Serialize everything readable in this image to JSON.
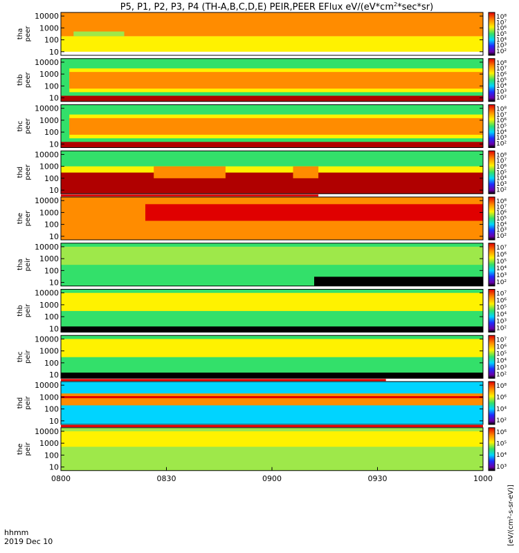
{
  "title": "P5, P1, P2, P3, P4 (TH-A,B,C,D,E) PEIR,PEER EFlux eV/(eV*cm",
  "title_sup": "2",
  "title_end": "*sec*sr)",
  "time_axis": {
    "range": [
      "0800",
      "1000"
    ],
    "ticks": [
      "0800",
      "0830",
      "0900",
      "0930",
      "1000"
    ],
    "label_line1": "hhmm",
    "label_line2": "2019 Dec 10"
  },
  "colorbar_label": "[eV/(cm²-s-sr-eV)]",
  "colors": {
    "black": "#000000",
    "purple": "#6a00a8",
    "blue": "#1f2bff",
    "cyan": "#00d4ff",
    "green": "#33e06a",
    "lightgreen": "#9ee84a",
    "yellow": "#fff200",
    "orange": "#ff8c00",
    "red": "#e00000",
    "darkred": "#b00000"
  },
  "chart_data": {
    "type": "heatmap",
    "title": "P5, P1, P2, P3, P4 (TH-A,B,C,D,E) PEIR,PEER EFlux eV/(eV*cm2*sec*sr)",
    "x": "time (hhmm), 2019 Dec 10, 0800-1000",
    "yscale": "log",
    "ylim": [
      5,
      20000
    ],
    "y_ticks": [
      "10",
      "100",
      "1000",
      "10000"
    ],
    "panels": [
      {
        "label": [
          "tha",
          "peer"
        ],
        "cbar_ticks": [
          "10⁸",
          "10⁷",
          "10⁶",
          "10⁵",
          "10⁴",
          "10³",
          "10²"
        ],
        "bands": [
          {
            "x": [
              0,
              1
            ],
            "y": [
              10,
              200
            ],
            "c": "yellow"
          },
          {
            "x": [
              0,
              1
            ],
            "y": [
              200,
              20000
            ],
            "c": "orange"
          },
          {
            "x": [
              0.03,
              0.15
            ],
            "y": [
              200,
              500
            ],
            "c": "lightgreen"
          },
          {
            "x": [
              0.12,
              0.15
            ],
            "y": [
              1500,
              5000
            ],
            "c": "orange"
          }
        ],
        "status_bar": null
      },
      {
        "label": [
          "thb",
          "peer"
        ],
        "cbar_ticks": [
          "10⁸",
          "10⁷",
          "10⁶",
          "10⁵",
          "10⁴",
          "10³",
          "10²"
        ],
        "bands": [
          {
            "x": [
              0,
              1
            ],
            "y": [
              5,
              20000
            ],
            "c": "green"
          },
          {
            "x": [
              0.02,
              1
            ],
            "y": [
              30,
              3000
            ],
            "c": "yellow"
          },
          {
            "x": [
              0.02,
              1
            ],
            "y": [
              60,
              1500
            ],
            "c": "orange"
          },
          {
            "x": [
              0,
              1
            ],
            "y": [
              5,
              15
            ],
            "c": "darkred"
          }
        ],
        "status_bar": null
      },
      {
        "label": [
          "thc",
          "peer"
        ],
        "cbar_ticks": [
          "10⁸",
          "10⁷",
          "10⁶",
          "10⁵",
          "10⁴",
          "10³",
          "10²"
        ],
        "bands": [
          {
            "x": [
              0,
              1
            ],
            "y": [
              5,
              20000
            ],
            "c": "green"
          },
          {
            "x": [
              0.02,
              1
            ],
            "y": [
              30,
              3000
            ],
            "c": "yellow"
          },
          {
            "x": [
              0.02,
              1
            ],
            "y": [
              60,
              1500
            ],
            "c": "orange"
          },
          {
            "x": [
              0,
              1
            ],
            "y": [
              5,
              15
            ],
            "c": "darkred"
          }
        ],
        "status_bar": null
      },
      {
        "label": [
          "thd",
          "peer"
        ],
        "cbar_ticks": [
          "10⁸",
          "10⁷",
          "10⁶",
          "10⁵",
          "10⁴",
          "10³",
          "10²"
        ],
        "bands": [
          {
            "x": [
              0,
              1
            ],
            "y": [
              200,
              20000
            ],
            "c": "green"
          },
          {
            "x": [
              0,
              1
            ],
            "y": [
              100,
              1000
            ],
            "c": "yellow"
          },
          {
            "x": [
              0,
              1
            ],
            "y": [
              5,
              300
            ],
            "c": "darkred"
          },
          {
            "x": [
              0.22,
              0.39
            ],
            "y": [
              100,
              1000
            ],
            "c": "orange"
          },
          {
            "x": [
              0.55,
              0.61
            ],
            "y": [
              100,
              1000
            ],
            "c": "orange"
          }
        ],
        "status_bar": {
          "fraction": 0.61,
          "color": "red"
        }
      },
      {
        "label": [
          "the",
          "peer"
        ],
        "cbar_ticks": [
          "10⁸",
          "10⁷",
          "10⁶",
          "10⁵",
          "10⁴",
          "10³",
          "10²"
        ],
        "bands": [
          {
            "x": [
              0,
              1
            ],
            "y": [
              5,
              20000
            ],
            "c": "orange"
          },
          {
            "x": [
              0.2,
              1
            ],
            "y": [
              200,
              5000
            ],
            "c": "red"
          }
        ],
        "status_bar": null
      },
      {
        "label": [
          "tha",
          "peir"
        ],
        "cbar_ticks": [
          "10⁷",
          "10⁶",
          "10⁵",
          "10⁴",
          "10³",
          "10²"
        ],
        "bands": [
          {
            "x": [
              0,
              1
            ],
            "y": [
              5,
              20000
            ],
            "c": "green"
          },
          {
            "x": [
              0,
              1
            ],
            "y": [
              300,
              10000
            ],
            "c": "lightgreen"
          },
          {
            "x": [
              0.6,
              1
            ],
            "y": [
              5,
              30
            ],
            "c": "black"
          }
        ],
        "status_bar": {
          "fraction": 0.85,
          "color": "red",
          "start": 0.85
        }
      },
      {
        "label": [
          "thb",
          "peir"
        ],
        "cbar_ticks": [
          "10⁷",
          "10⁶",
          "10⁵",
          "10⁴",
          "10³",
          "10²"
        ],
        "bands": [
          {
            "x": [
              0,
              1
            ],
            "y": [
              5,
              20000
            ],
            "c": "green"
          },
          {
            "x": [
              0,
              1
            ],
            "y": [
              300,
              10000
            ],
            "c": "yellow"
          },
          {
            "x": [
              0,
              1
            ],
            "y": [
              5,
              15
            ],
            "c": "black"
          }
        ],
        "status_bar": {
          "fraction": 0.85,
          "color": "red",
          "start": 0.85
        }
      },
      {
        "label": [
          "thc",
          "peir"
        ],
        "cbar_ticks": [
          "10⁷",
          "10⁶",
          "10⁵",
          "10⁴",
          "10³",
          "10²"
        ],
        "bands": [
          {
            "x": [
              0,
              1
            ],
            "y": [
              5,
              20000
            ],
            "c": "green"
          },
          {
            "x": [
              0,
              1
            ],
            "y": [
              300,
              10000
            ],
            "c": "yellow"
          },
          {
            "x": [
              0,
              1
            ],
            "y": [
              5,
              15
            ],
            "c": "black"
          }
        ],
        "status_bar": {
          "fraction": 0.77,
          "color": "red"
        }
      },
      {
        "label": [
          "thd",
          "peir"
        ],
        "cbar_ticks": [
          "10⁸",
          "10⁶",
          "10⁴",
          "10²"
        ],
        "bands": [
          {
            "x": [
              0,
              1
            ],
            "y": [
              5,
              20000
            ],
            "c": "cyan"
          },
          {
            "x": [
              0,
              1
            ],
            "y": [
              200,
              2000
            ],
            "c": "orange"
          },
          {
            "x": [
              0,
              1
            ],
            "y": [
              800,
              1200
            ],
            "c": "red"
          }
        ],
        "status_bar": {
          "fraction": 1.0,
          "color": "red"
        }
      },
      {
        "label": [
          "the",
          "peir"
        ],
        "cbar_ticks": [
          "10⁶",
          "10⁵",
          "10⁴",
          "10³"
        ],
        "bands": [
          {
            "x": [
              0,
              1
            ],
            "y": [
              5,
              20000
            ],
            "c": "lightgreen"
          },
          {
            "x": [
              0,
              1
            ],
            "y": [
              500,
              10000
            ],
            "c": "yellow"
          }
        ],
        "status_bar": null
      }
    ]
  }
}
